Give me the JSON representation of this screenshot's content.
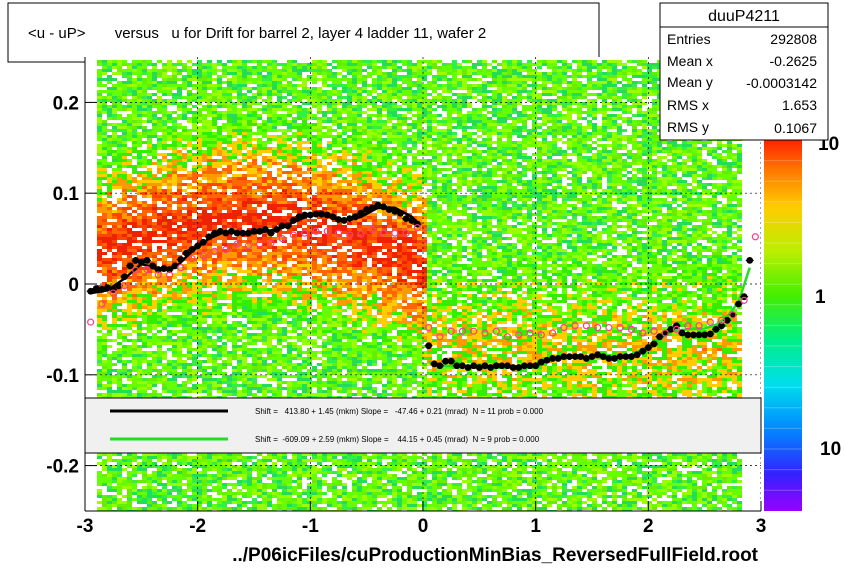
{
  "title": "<u - uP>       versus   u for Drift for barrel 2, layer 4 ladder 11, wafer 2",
  "x_label": "../P06icFiles/cuProductionMinBias_ReversedFullField.root",
  "stats": {
    "name": "duuP4211",
    "rows": [
      {
        "label": "Entries",
        "value": "292808"
      },
      {
        "label": "Mean x",
        "value": "-0.2625"
      },
      {
        "label": "Mean y",
        "value": "-0.0003142"
      },
      {
        "label": "RMS x",
        "value": "1.653"
      },
      {
        "label": "RMS y",
        "value": "0.1067"
      }
    ]
  },
  "palette_labels": [
    "10",
    "1",
    "10"
  ],
  "legend": [
    {
      "color": "#000000",
      "text": "Shift =   413.80 + 1.45 (mkm) Slope =   -47.46 + 0.21 (mrad)  N = 11 prob = 0.000"
    },
    {
      "color": "#22dd22",
      "text": "Shift =  -609.09 + 2.59 (mkm) Slope =    44.15 + 0.45 (mrad)  N = 9 prob = 0.000"
    }
  ],
  "chart_data": {
    "type": "heatmap",
    "xlim": [
      -3,
      3
    ],
    "ylim": [
      -0.25,
      0.25
    ],
    "x_ticks": [
      "-3",
      "-2",
      "-1",
      "0",
      "1",
      "2",
      "3"
    ],
    "y_ticks": [
      "0.2",
      "0.1",
      "0",
      "-0.1",
      "-0.2"
    ],
    "grid": true,
    "series": [
      {
        "color": "#000000",
        "marker": "filled-circle",
        "x": [
          -2.95,
          -2.9,
          -2.85,
          -2.8,
          -2.75,
          -2.7,
          -2.65,
          -2.6,
          -2.55,
          -2.5,
          -2.45,
          -2.4,
          -2.35,
          -2.3,
          -2.25,
          -2.2,
          -2.15,
          -2.1,
          -2.05,
          -2.0,
          -1.95,
          -1.9,
          -1.85,
          -1.8,
          -1.75,
          -1.7,
          -1.65,
          -1.6,
          -1.55,
          -1.5,
          -1.45,
          -1.4,
          -1.35,
          -1.3,
          -1.25,
          -1.2,
          -1.15,
          -1.1,
          -1.05,
          -1.0,
          -0.95,
          -0.9,
          -0.85,
          -0.8,
          -0.75,
          -0.7,
          -0.65,
          -0.6,
          -0.55,
          -0.5,
          -0.45,
          -0.4,
          -0.35,
          -0.3,
          -0.25,
          -0.2,
          -0.15,
          -0.1,
          -0.05
        ],
        "y": [
          -0.008,
          -0.005,
          -0.006,
          -0.004,
          -0.006,
          -0.002,
          0.008,
          0.02,
          0.026,
          0.024,
          0.026,
          0.02,
          0.016,
          0.017,
          0.016,
          0.02,
          0.027,
          0.034,
          0.038,
          0.042,
          0.046,
          0.052,
          0.056,
          0.058,
          0.056,
          0.058,
          0.056,
          0.056,
          0.056,
          0.058,
          0.058,
          0.06,
          0.056,
          0.06,
          0.064,
          0.064,
          0.07,
          0.074,
          0.076,
          0.076,
          0.077,
          0.077,
          0.076,
          0.074,
          0.071,
          0.07,
          0.072,
          0.074,
          0.078,
          0.082,
          0.084,
          0.087,
          0.085,
          0.082,
          0.08,
          0.078,
          0.072,
          0.07,
          0.066
        ]
      },
      {
        "color": "#ff3c8c",
        "marker": "open-circle",
        "x": [
          -2.95,
          -2.85,
          -2.75,
          -2.65,
          -2.55,
          -2.45,
          -2.35,
          -2.25,
          -2.15,
          -2.05,
          -1.95,
          -1.85,
          -1.75,
          -1.65,
          -1.55,
          -1.45,
          -1.35,
          -1.25,
          -1.15,
          -1.05,
          -0.95,
          -0.85,
          -0.75,
          -0.65,
          -0.55,
          -0.45,
          -0.35,
          -0.25,
          -0.15,
          -0.05
        ],
        "y": [
          -0.042,
          -0.022,
          -0.01,
          -0.002,
          0.015,
          0.016,
          0.01,
          0.01,
          0.018,
          0.028,
          0.031,
          0.036,
          0.038,
          0.044,
          0.042,
          0.044,
          0.045,
          0.05,
          0.054,
          0.056,
          0.058,
          0.058,
          0.056,
          0.054,
          0.055,
          0.06,
          0.056,
          0.056,
          0.056,
          0.062
        ]
      },
      {
        "color": "#000000",
        "marker": "filled-circle",
        "x": [
          0.05,
          0.1,
          0.15,
          0.2,
          0.25,
          0.3,
          0.35,
          0.4,
          0.45,
          0.5,
          0.55,
          0.6,
          0.65,
          0.7,
          0.75,
          0.8,
          0.85,
          0.9,
          0.95,
          1.0,
          1.05,
          1.1,
          1.15,
          1.2,
          1.25,
          1.3,
          1.35,
          1.4,
          1.45,
          1.5,
          1.55,
          1.6,
          1.65,
          1.7,
          1.75,
          1.8,
          1.85,
          1.9,
          1.95,
          2.0,
          2.05,
          2.1,
          2.15,
          2.2,
          2.25,
          2.3,
          2.35,
          2.4,
          2.45,
          2.5,
          2.55,
          2.6,
          2.65,
          2.7,
          2.75,
          2.8,
          2.85,
          2.9
        ],
        "y": [
          -0.068,
          -0.088,
          -0.09,
          -0.085,
          -0.085,
          -0.09,
          -0.09,
          -0.092,
          -0.09,
          -0.092,
          -0.09,
          -0.092,
          -0.09,
          -0.09,
          -0.09,
          -0.092,
          -0.092,
          -0.09,
          -0.09,
          -0.09,
          -0.086,
          -0.084,
          -0.082,
          -0.082,
          -0.08,
          -0.08,
          -0.08,
          -0.08,
          -0.082,
          -0.08,
          -0.078,
          -0.08,
          -0.082,
          -0.082,
          -0.08,
          -0.08,
          -0.08,
          -0.078,
          -0.074,
          -0.07,
          -0.066,
          -0.058,
          -0.054,
          -0.05,
          -0.046,
          -0.054,
          -0.056,
          -0.056,
          -0.056,
          -0.056,
          -0.055,
          -0.05,
          -0.046,
          -0.04,
          -0.034,
          -0.022,
          -0.014,
          0.026
        ]
      },
      {
        "color": "#ff3c8c",
        "marker": "open-circle",
        "x": [
          0.05,
          0.15,
          0.25,
          0.35,
          0.45,
          0.55,
          0.65,
          0.75,
          0.85,
          0.95,
          1.05,
          1.15,
          1.25,
          1.35,
          1.45,
          1.55,
          1.65,
          1.75,
          1.85,
          1.95,
          2.05,
          2.15,
          2.25,
          2.35,
          2.45,
          2.55,
          2.65,
          2.75,
          2.85,
          2.95
        ],
        "y": [
          -0.048,
          -0.058,
          -0.052,
          -0.052,
          -0.052,
          -0.054,
          -0.052,
          -0.058,
          -0.056,
          -0.054,
          -0.056,
          -0.054,
          -0.048,
          -0.046,
          -0.046,
          -0.048,
          -0.048,
          -0.048,
          -0.05,
          -0.054,
          -0.052,
          -0.054,
          -0.05,
          -0.046,
          -0.046,
          -0.042,
          -0.04,
          -0.034,
          -0.018,
          0.052
        ]
      }
    ],
    "fits": [
      {
        "color": "#000000",
        "x": [
          -2.95,
          -2.8,
          -2.65,
          -2.5,
          -2.35,
          -2.2,
          -2.05,
          -1.9,
          -1.75,
          -1.6,
          -1.45,
          -1.3,
          -1.15,
          -1.0,
          -0.85,
          -0.7,
          -0.55,
          -0.4,
          -0.25,
          -0.1,
          -0.05
        ],
        "y": [
          -0.01,
          -0.007,
          0.006,
          0.022,
          0.017,
          0.018,
          0.036,
          0.05,
          0.058,
          0.055,
          0.057,
          0.06,
          0.068,
          0.076,
          0.076,
          0.07,
          0.074,
          0.084,
          0.084,
          0.074,
          0.068
        ]
      },
      {
        "color": "#22dd22",
        "x": [
          0.05,
          0.2,
          0.4,
          0.6,
          0.8,
          1.0,
          1.2,
          1.4,
          1.6,
          1.8,
          2.0,
          2.2,
          2.35,
          2.5,
          2.6,
          2.7,
          2.8,
          2.9
        ],
        "y": [
          -0.086,
          -0.09,
          -0.092,
          -0.092,
          -0.091,
          -0.088,
          -0.082,
          -0.08,
          -0.081,
          -0.08,
          -0.07,
          -0.052,
          -0.05,
          -0.049,
          -0.045,
          -0.036,
          -0.02,
          0.018
        ]
      }
    ]
  }
}
